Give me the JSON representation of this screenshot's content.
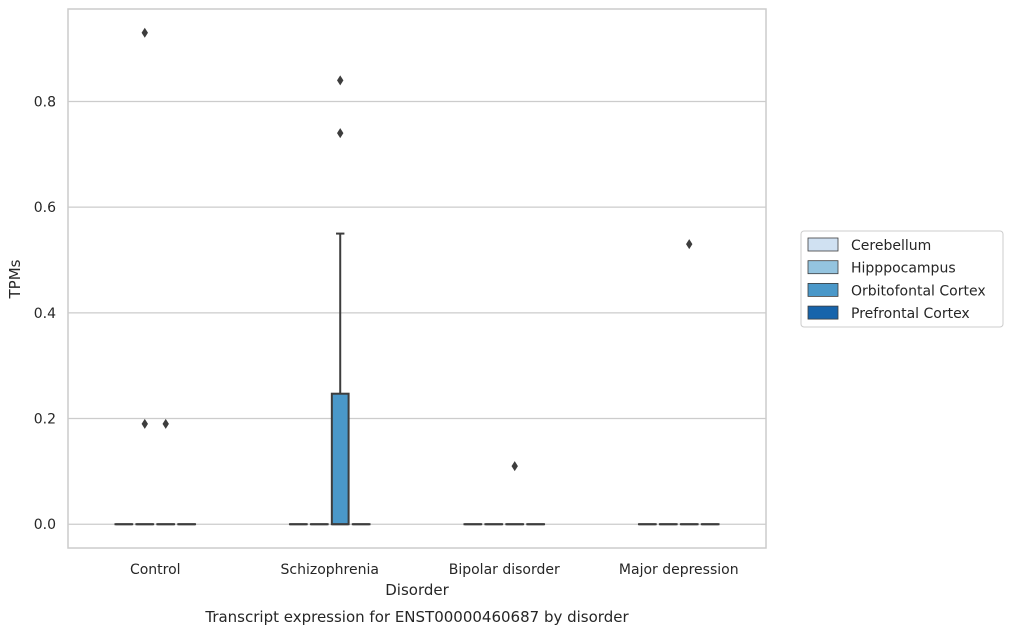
{
  "chart_data": {
    "type": "box",
    "title": "",
    "caption": "Transcript expression for ENST00000460687 by disorder",
    "xlabel": "Disorder",
    "ylabel": "TPMs",
    "categories": [
      "Control",
      "Schizophrenia",
      "Bipolar disorder",
      "Major depression"
    ],
    "ylim": [
      -0.045,
      0.975
    ],
    "yticks": [
      0.0,
      0.2,
      0.4,
      0.6,
      0.8
    ],
    "ytick_labels": [
      "0.0",
      "0.2",
      "0.4",
      "0.6",
      "0.8"
    ],
    "grid": "horizontal",
    "legend_position": "right",
    "series": [
      {
        "name": "Cerebellum",
        "color": "#d0e1f2",
        "boxes": [
          {
            "q1": 0,
            "median": 0,
            "q3": 0,
            "whisker_low": 0,
            "whisker_high": 0,
            "outliers": []
          },
          {
            "q1": 0,
            "median": 0,
            "q3": 0,
            "whisker_low": 0,
            "whisker_high": 0,
            "outliers": []
          },
          {
            "q1": 0,
            "median": 0,
            "q3": 0,
            "whisker_low": 0,
            "whisker_high": 0,
            "outliers": []
          },
          {
            "q1": 0,
            "median": 0,
            "q3": 0,
            "whisker_low": 0,
            "whisker_high": 0,
            "outliers": []
          }
        ]
      },
      {
        "name": "Hipppocampus",
        "color": "#94c4df",
        "boxes": [
          {
            "q1": 0,
            "median": 0,
            "q3": 0,
            "whisker_low": 0,
            "whisker_high": 0,
            "outliers": [
              0.93,
              0.19
            ]
          },
          {
            "q1": 0,
            "median": 0,
            "q3": 0,
            "whisker_low": 0,
            "whisker_high": 0,
            "outliers": []
          },
          {
            "q1": 0,
            "median": 0,
            "q3": 0,
            "whisker_low": 0,
            "whisker_high": 0,
            "outliers": []
          },
          {
            "q1": 0,
            "median": 0,
            "q3": 0,
            "whisker_low": 0,
            "whisker_high": 0,
            "outliers": []
          }
        ]
      },
      {
        "name": "Orbitofontal Cortex",
        "color": "#4a98c9",
        "boxes": [
          {
            "q1": 0,
            "median": 0,
            "q3": 0,
            "whisker_low": 0,
            "whisker_high": 0,
            "outliers": [
              0.19
            ]
          },
          {
            "q1": 0,
            "median": 0,
            "q3": 0.247,
            "whisker_low": 0,
            "whisker_high": 0.55,
            "outliers": [
              0.84,
              0.74
            ]
          },
          {
            "q1": 0,
            "median": 0,
            "q3": 0,
            "whisker_low": 0,
            "whisker_high": 0,
            "outliers": [
              0.11
            ]
          },
          {
            "q1": 0,
            "median": 0,
            "q3": 0,
            "whisker_low": 0,
            "whisker_high": 0,
            "outliers": [
              0.53
            ]
          }
        ]
      },
      {
        "name": "Prefrontal Cortex",
        "color": "#1764ab",
        "boxes": [
          {
            "q1": 0,
            "median": 0,
            "q3": 0,
            "whisker_low": 0,
            "whisker_high": 0,
            "outliers": []
          },
          {
            "q1": 0,
            "median": 0,
            "q3": 0,
            "whisker_low": 0,
            "whisker_high": 0,
            "outliers": []
          },
          {
            "q1": 0,
            "median": 0,
            "q3": 0,
            "whisker_low": 0,
            "whisker_high": 0,
            "outliers": []
          },
          {
            "q1": 0,
            "median": 0,
            "q3": 0,
            "whisker_low": 0,
            "whisker_high": 0,
            "outliers": []
          }
        ]
      }
    ]
  },
  "colors": {
    "grid": "#cccccc",
    "frame": "#cccccc",
    "box_edge": "#3d3d3d",
    "text": "#262626"
  }
}
